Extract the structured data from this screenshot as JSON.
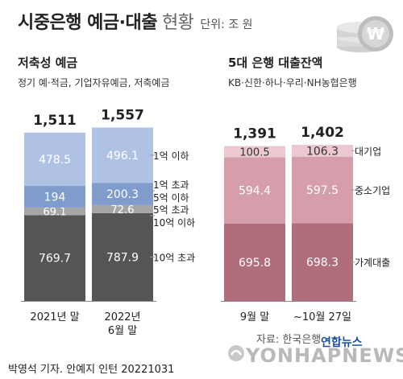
{
  "header": {
    "title": "시중은행 예금·대출",
    "title_sub": "현황",
    "unit": "단위: 조 원"
  },
  "footer": {
    "credit": "박영석 기자. 안예지 인턴  20221031",
    "source": "자료: 한국은행",
    "agency": "연합뉴스",
    "watermark": "YONHAPNEWS"
  },
  "chart_data": [
    {
      "type": "bar",
      "stacked": true,
      "title": "저축성 예금",
      "subtitle": "정기 예·적금, 기업자유예금, 저축예금",
      "categories": [
        "2021년 말",
        "2022년\n6월 말"
      ],
      "totals": [
        1511,
        1557
      ],
      "series": [
        {
          "name": "10억 초과",
          "values": [
            769.7,
            787.9
          ],
          "color": "#555555"
        },
        {
          "name": "5억 초과\n10억 이하",
          "values": [
            69.1,
            72.6
          ],
          "color": "#a6a6a6"
        },
        {
          "name": "1억 초과\n5억 이하",
          "values": [
            194.0,
            200.3
          ],
          "color": "#7f9ccc"
        },
        {
          "name": "1억 이하",
          "values": [
            478.5,
            496.1
          ],
          "color": "#b0c2e3"
        }
      ]
    },
    {
      "type": "bar",
      "stacked": true,
      "title": "5대 은행 대출잔액",
      "subtitle": "KB·신한·하나·우리·NH농협은행",
      "categories": [
        "9월 말",
        "~10월 27일"
      ],
      "totals": [
        1391,
        1402
      ],
      "series": [
        {
          "name": "가계대출",
          "values": [
            695.8,
            698.3
          ],
          "color": "#b06e7c"
        },
        {
          "name": "중소기업",
          "values": [
            594.4,
            597.5
          ],
          "color": "#d69eab"
        },
        {
          "name": "대기업",
          "values": [
            100.5,
            106.3
          ],
          "color": "#ecc8d1"
        }
      ]
    }
  ]
}
